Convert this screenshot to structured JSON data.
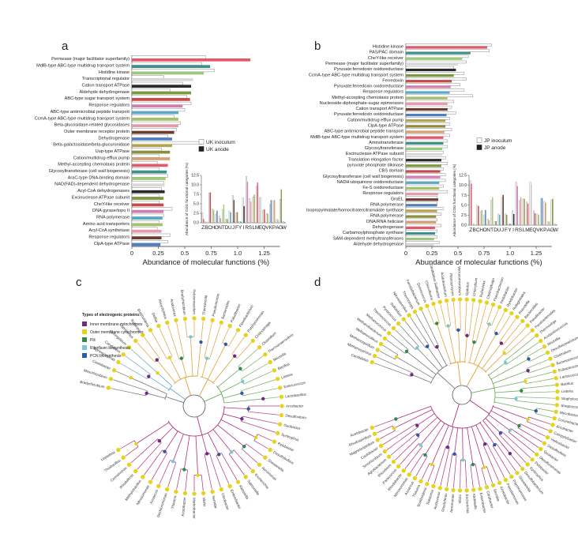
{
  "chart_data": [
    {
      "panel": "a",
      "type": "bar",
      "orientation": "horizontal",
      "xlabel": "Abundance of molecular functions (%)",
      "xlim": [
        0,
        1.4
      ],
      "xticks": [
        "0",
        "0.25",
        "0.5",
        "0.75",
        "1.0",
        "1.25"
      ],
      "tick_values": [
        0,
        0.25,
        0.5,
        0.75,
        1.0,
        1.25
      ],
      "legend": [
        "UK inoculum",
        "UK anode"
      ],
      "categories": [
        "Permease (major facilitator superfamily)",
        "MdlB-type ABC-type multidrug transport system",
        "Histidine kinase",
        "Transcriptional regulator",
        "Cation transport ATPase",
        "Aldehyde dehydrogenase",
        "ABC-type sugar transport system",
        "Response regulators",
        "ABC-type antimicrobial peptide transport",
        "CcmA-type ABC-type multidrug transport system",
        "Beta-glucosidase-related glycosidases",
        "Outer membrane receptor protein",
        "Dehydrogenase",
        "Beta-galactosidase/beta-glucuronidase",
        "Uup-type ATPase",
        "Cation/multidrug efflux pump",
        "Methyl-accepting chemotaxis protein",
        "Glycosyltransferase (cell wall biogenesis)",
        "AraC-type DNA-binding domain",
        "NAD(FAD)-dependent dehydrogenase",
        "Acyl-CoA dehydrogenases",
        "Excinuclease ATPase subunit",
        "CheY-like receiver",
        "DNA gyrase/topo II",
        "RNA polymerase",
        "Amino acid transporters",
        "Acyl-CoA synthetase",
        "Response regulators",
        "ClpA-type ATPase"
      ],
      "series": [
        {
          "name": "UK inoculum",
          "values": [
            0.7,
            0.66,
            0.78,
            0.3,
            0.48,
            0.36,
            0.52,
            0.56,
            0.5,
            0.4,
            0.46,
            0.42,
            0.34,
            0.66,
            0.28,
            0.26,
            0.24,
            0.26,
            0.34,
            0.3,
            0.28,
            0.26,
            0.26,
            0.38,
            0.3,
            0.26,
            0.24,
            0.36,
            0.34
          ]
        },
        {
          "name": "UK anode",
          "values": [
            1.12,
            0.74,
            0.68,
            0.58,
            0.56,
            0.56,
            0.55,
            0.48,
            0.44,
            0.44,
            0.44,
            0.4,
            0.38,
            0.38,
            0.36,
            0.36,
            0.34,
            0.33,
            0.32,
            0.31,
            0.31,
            0.3,
            0.3,
            0.3,
            0.29,
            0.29,
            0.28,
            0.28,
            0.27
          ]
        }
      ],
      "inset": {
        "type": "bar",
        "ylabel": "Abundance of COG functional categories (%)",
        "yticks": [
          "0.0",
          "2.5",
          "5.0",
          "7.5",
          "10.0",
          "12.5"
        ],
        "ytick_values": [
          0,
          2.5,
          5,
          7.5,
          10,
          12.5
        ],
        "categories": [
          "Z",
          "B",
          "C",
          "H",
          "O",
          "N",
          "T",
          "D",
          "U",
          "J",
          "F",
          "Y",
          "I",
          "R",
          "S",
          "L",
          "M",
          "E",
          "Q",
          "V",
          "K",
          "P",
          "A",
          "G",
          "W"
        ],
        "inoculum": [
          2.6,
          0.3,
          7.8,
          3.6,
          2.3,
          1.7,
          3.4,
          0.9,
          3.1,
          7.2,
          2.6,
          0.4,
          6.6,
          12.2,
          6.4,
          6.8,
          9.6,
          6.6,
          3.3,
          2.5,
          4.8,
          5.8,
          0.9,
          6.2,
          0.3
        ],
        "anode": [
          1.0,
          0.2,
          8.0,
          3.4,
          3.2,
          1.2,
          4.8,
          1.0,
          2.7,
          6.0,
          2.8,
          0.3,
          4.4,
          10.8,
          5.6,
          7.4,
          10.6,
          6.8,
          3.5,
          2.4,
          6.0,
          6.0,
          0.8,
          8.8,
          0.2
        ]
      }
    },
    {
      "panel": "b",
      "type": "bar",
      "orientation": "horizontal",
      "xlabel": "Abundance of molecular functions (%)",
      "xlim": [
        0,
        1.4
      ],
      "xticks": [
        "0",
        "0.25",
        "0.5",
        "0.75",
        "1.0",
        "1.25"
      ],
      "tick_values": [
        0,
        0.25,
        0.5,
        0.75,
        1.0,
        1.25
      ],
      "legend": [
        "JP inoculum",
        "JP anode"
      ],
      "categories": [
        "Histidine kinase",
        "PAS/PAC domain",
        "CheY-like receiver",
        "Permease (major facilitator superfamily)",
        "Pyruvate:ferredoxin oxidoreductase",
        "CcmA-type ABC-type multidrug transport system",
        "Ferredoxin",
        "Pyruvate:ferredoxin oxidoreductase",
        "Response regulators",
        "Methyl-accepting chemotaxis protein",
        "Nucleoside-diphosphate-sugar epimerases",
        "Cation transport ATPase",
        "Pyruvate:ferredoxin oxidoreductase",
        "Cation/multidrug efflux pump",
        "ClpA-type ATPase",
        "ABC-type antimicrobial peptide transport",
        "MdlB-type ABC-type multidrug transport system",
        "Aminotransferase",
        "Glycosyltransferase",
        "Excinuclease ATPase subunit",
        "Translation elongation factor",
        "pyruvate phosphate dikinase",
        "CBS domain",
        "Glycosyltransferase (cell wall biogenesis)",
        "NADH:ubiquinone oxidoreductase",
        "Fe-S oxidoreductase",
        "Response regulators",
        "GroEL",
        "RNA polymerase",
        "Isopropylmalate/homocitrate/citramalate synthase",
        "RNA polymerase",
        "DNA/RNA helicase",
        "Dehydrogenase",
        "Carbamoylphosphate synthase",
        "SAM-dependent methyltransferases",
        "Aldehyde dehydrogenase"
      ],
      "series": [
        {
          "name": "JP inoculum",
          "values": [
            0.82,
            0.8,
            0.6,
            0.58,
            0.46,
            0.56,
            0.58,
            0.52,
            0.56,
            0.64,
            0.46,
            0.44,
            0.48,
            0.42,
            0.42,
            0.44,
            0.42,
            0.4,
            0.4,
            0.36,
            0.38,
            0.4,
            0.36,
            0.38,
            0.38,
            0.36,
            0.4,
            0.3,
            0.3,
            0.36,
            0.34,
            0.3,
            0.34,
            0.3,
            0.3,
            0.32
          ]
        },
        {
          "name": "JP anode",
          "values": [
            0.78,
            0.62,
            0.54,
            0.5,
            0.48,
            0.46,
            0.44,
            0.43,
            0.42,
            0.4,
            0.4,
            0.4,
            0.39,
            0.38,
            0.38,
            0.37,
            0.36,
            0.36,
            0.35,
            0.35,
            0.34,
            0.34,
            0.33,
            0.33,
            0.32,
            0.32,
            0.31,
            0.31,
            0.3,
            0.3,
            0.29,
            0.29,
            0.28,
            0.28,
            0.27,
            0.27
          ]
        }
      ],
      "inset": {
        "type": "bar",
        "ylabel": "Abundance of COG functional categories (%)",
        "yticks": [
          "0.0",
          "2.5",
          "5.0",
          "7.5",
          "10.0",
          "12.5"
        ],
        "ytick_values": [
          0,
          2.5,
          5,
          7.5,
          10,
          12.5
        ],
        "categories": [
          "Z",
          "B",
          "C",
          "H",
          "O",
          "N",
          "T",
          "D",
          "U",
          "J",
          "F",
          "Y",
          "I",
          "R",
          "S",
          "L",
          "M",
          "E",
          "Q",
          "V",
          "K",
          "P",
          "A",
          "G",
          "W"
        ],
        "inoculum": [
          11.2,
          0.3,
          5.0,
          3.4,
          2.6,
          1.5,
          6.2,
          0.9,
          2.8,
          7.0,
          2.8,
          0.4,
          3.6,
          10.8,
          6.2,
          6.6,
          5.8,
          10.8,
          3.6,
          2.8,
          6.6,
          6.0,
          0.8,
          6.2,
          0.3
        ],
        "anode": [
          10.4,
          0.2,
          4.8,
          3.8,
          3.8,
          1.2,
          7.0,
          1.0,
          2.6,
          7.6,
          2.6,
          0.3,
          2.8,
          9.8,
          7.0,
          6.6,
          5.4,
          10.2,
          3.0,
          2.6,
          6.8,
          5.6,
          0.9,
          6.6,
          0.2
        ]
      }
    },
    {
      "panel": "c",
      "type": "tree",
      "legend_title": "Types of electrogenic proteins:",
      "legend": [
        "Inner membrane cytochromes",
        "Outer membrane cytochromes",
        "Pili",
        "Riboflavin biosynthesis",
        "PCN biosynthesis"
      ],
      "legend_colors": [
        "#6c2c86",
        "#e6d21c",
        "#2f8a4e",
        "#78c8d3",
        "#2d5aa8"
      ],
      "tips": [
        "Bradyrhizobium",
        "Mesorhizobium",
        "Caulobacter",
        "Sphingomonas",
        "Candidatus",
        "Sphingobium",
        "Cupriavidus",
        "Ralstonia",
        "Burkholderia",
        "Delftia",
        "Alicycliphilus",
        "Acidovorax",
        "Bradyrhizobium",
        "Pelotomaculum",
        "Thermincola",
        "Pseudomonas",
        "Bacteroides",
        "Paludibacter",
        "Flavobacterium",
        "Porphyromonas",
        "Chitinophaga",
        "Clostridium",
        "Thermanaerovibrio",
        "Moorella",
        "Bacillus",
        "Listeria",
        "Enterococcus",
        "Lactobacillus",
        "Arcobacter",
        "Desulfovibrio",
        "Geobacter",
        "Syntrophus",
        "Pelobacter",
        "Desulfobulbus",
        "Shewanella",
        "Aeromonas",
        "Escherichia",
        "Salmonella",
        "Klebsiella",
        "Enterobacter",
        "Citrobacter",
        "Serratia",
        "Vibrio",
        "Marinobacter",
        "Azotobacter",
        "Thauera",
        "Dechloromonas",
        "Azoarcus",
        "Nitrosomonas",
        "Methylobacillus",
        "Rhodoferax",
        "Comamonas",
        "Thiobacillus",
        "Leptothrix"
      ]
    },
    {
      "panel": "d",
      "type": "tree",
      "tips": [
        "Candidatus",
        "Methanosarcina",
        "Methanospirillum",
        "Methanoculleus",
        "Methanobacterium",
        "Methanococcus",
        "Thermococcus",
        "Pyrococcus",
        "Sulfolobus",
        "Nitrosopumilus",
        "Thermotoga",
        "Fervidobacterium",
        "Deinococcus",
        "Chloroflexus",
        "Candidatus Solibacter",
        "Acidobacterium",
        "Planctomyces",
        "Verrucomicrobium",
        "Opitutus",
        "Chlorobium",
        "Rubrivivax",
        "Chitinophaga",
        "Flavobacterium",
        "Pedobacter",
        "Dyadobacter",
        "Robiginitalea",
        "Prevotella",
        "Bacteroides",
        "Paludibacter",
        "Parabacteroides",
        "Thermovirga",
        "Acidaminococcus",
        "Moorella",
        "Desulfotomaculum",
        "Clostridium",
        "Ruminococcus",
        "Eubacterium",
        "Lactococcus",
        "Bacillus",
        "Listeria",
        "Staphylococcus",
        "Streptococcus",
        "Mycobacterium",
        "Corynebacterium",
        "Arcobacter",
        "Campylobacter",
        "Helicobacter",
        "Desulfovibrio",
        "Geobacter",
        "Desulfuromonas",
        "Pelobacter",
        "Syntrophus",
        "Desulfobacterium",
        "Shewanella",
        "Psychromonas",
        "Pseudomonas",
        "Azotobacter",
        "Serratia",
        "Citrobacter",
        "Enterobacter",
        "Klebsiella",
        "Escherichia",
        "Vibrio",
        "Aeromonas",
        "Rhodoferax",
        "Acidovorax",
        "Ralstonia",
        "Burkholderia",
        "Thauera",
        "Azoarcus",
        "Nitrosomonas",
        "Rhodobacter",
        "Paracoccus",
        "Rhizobium",
        "Agrobacterium",
        "Sinorhizobium",
        "Caulobacter",
        "Magnetospirillum",
        "Rhodospirillum",
        "Acetobacter"
      ]
    }
  ],
  "colors": {
    "inoculum_fill": "#ffffff",
    "inoculum_stroke": "#8a8a8a",
    "legend_anode": "#222222",
    "tree_branch_pink": "#b0307a",
    "tree_branch_green": "#6fae5a",
    "tree_branch_orange": "#e0a038",
    "tree_branch_blue": "#6aa6cc",
    "tree_branch_gray": "#777777",
    "palette": [
      "#e05a6c",
      "#3f8f8a",
      "#9fc87a",
      "#d9d9d9",
      "#2b2b2b",
      "#7b9a3e",
      "#c94a4a",
      "#d07fb0",
      "#5aa9c7",
      "#a7c06a",
      "#e79aa9",
      "#6e3c2e",
      "#4f7fbf",
      "#b4a34f",
      "#8e8e3c",
      "#d5a074"
    ]
  }
}
